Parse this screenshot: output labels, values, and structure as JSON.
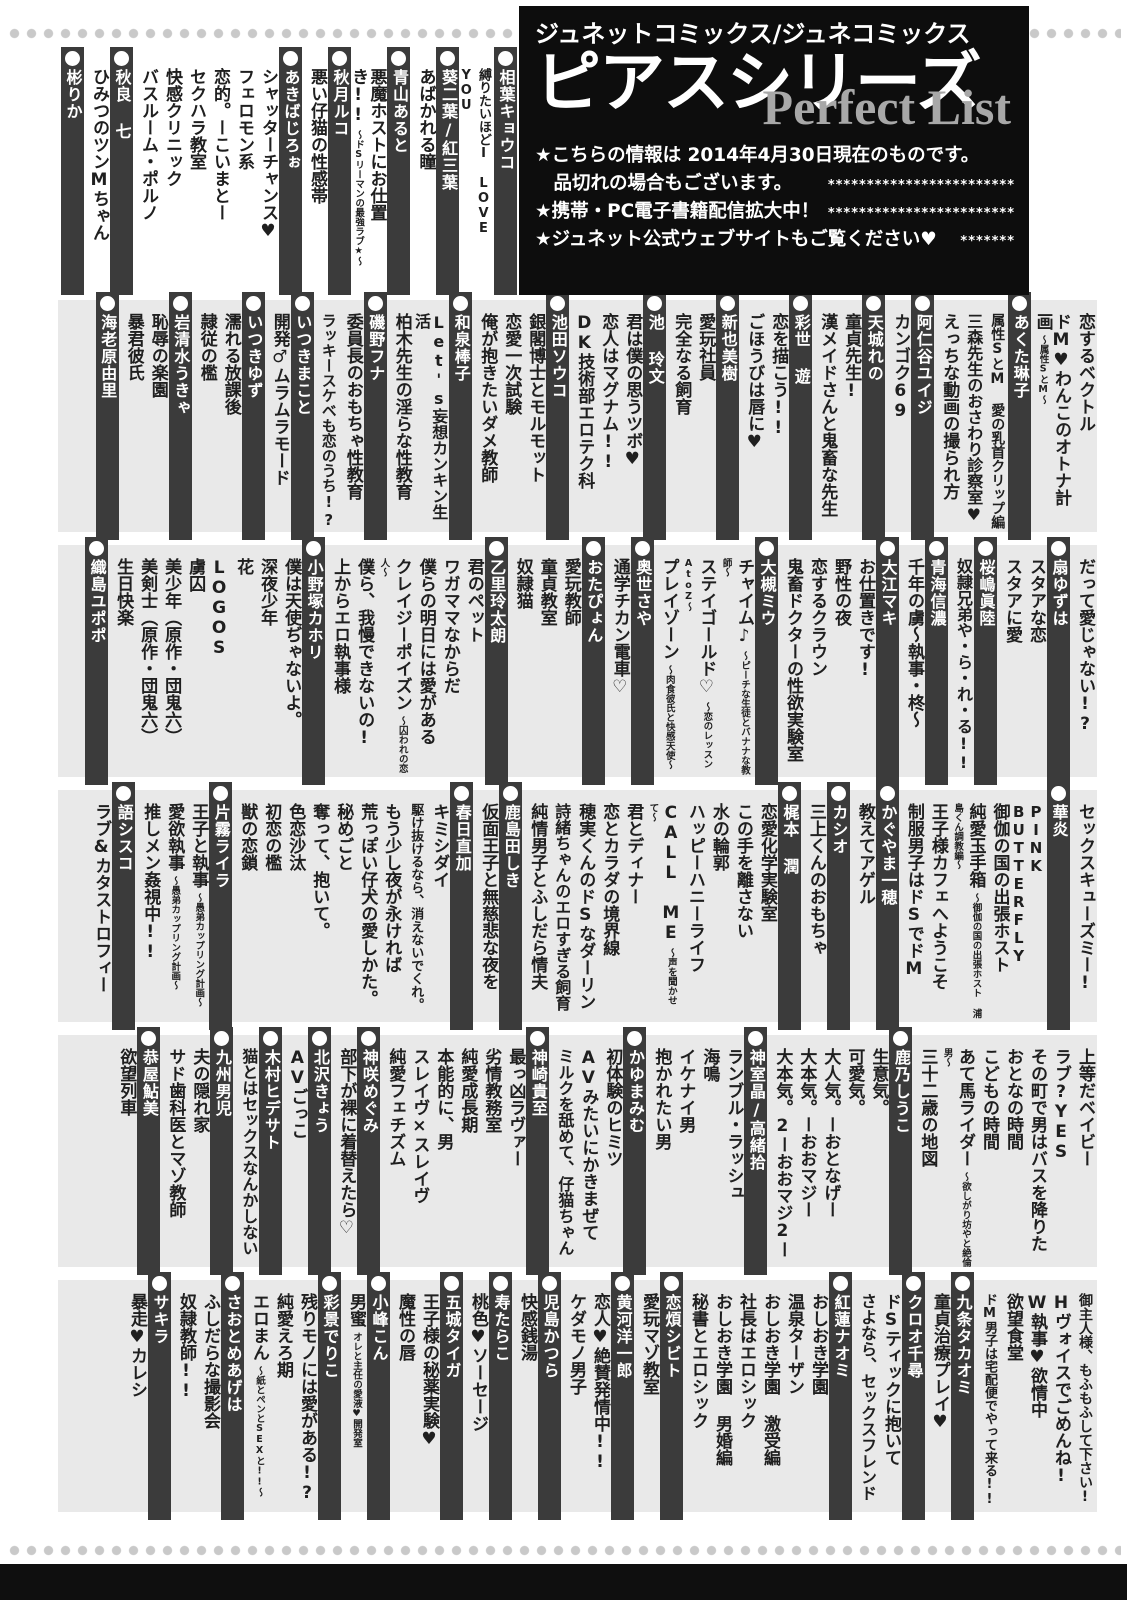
{
  "colors": {
    "header_bg": "#0d0d0d",
    "subtitle_gray": "#a8a8a8",
    "row_bg": "#e9e9e9",
    "row_bg_first": "#ffffff",
    "author_bar": "#3b3b3b",
    "title_text": "#1f1f1f",
    "dots": "#c9c9c9"
  },
  "header": {
    "series_line": "ジュネットコミックス/ジュネコミックス",
    "title": "ピアスシリーズ",
    "subtitle": "Perfect List",
    "notes": [
      {
        "text": "★こちらの情報は 2014年4月30日現在のものです。",
        "stars": ""
      },
      {
        "text": "　品切れの場合もございます。",
        "stars": "************************"
      },
      {
        "text": "★携帯・PC電子書籍配信拡大中！",
        "stars": "************************"
      },
      {
        "text": "★ジュネット公式ウェブサイトもご覧ください♥",
        "stars": "*******"
      }
    ]
  },
  "rows": [
    {
      "items": [
        {
          "kind": "author",
          "text": "相葉キョウコ"
        },
        {
          "kind": "title",
          "text": "縛りたいほどI LOVE YOU"
        },
        {
          "kind": "author",
          "text": "葵二葉/紅三葉"
        },
        {
          "kind": "title",
          "text": "あばかれる瞳"
        },
        {
          "kind": "author",
          "text": "青山あると"
        },
        {
          "kind": "title",
          "text": "悪魔ホストにお仕置き!!",
          "sub": "〜ドSリーマンの最強ラブ★〜"
        },
        {
          "kind": "author",
          "text": "秋月ルコ"
        },
        {
          "kind": "title",
          "text": "悪い仔猫の性感帯"
        },
        {
          "kind": "author",
          "text": "あきばじろぉ"
        },
        {
          "kind": "title",
          "text": "シャッターチャンス♥"
        },
        {
          "kind": "title",
          "text": "フェロモン系"
        },
        {
          "kind": "title",
          "text": "恋的。ーこいまとー"
        },
        {
          "kind": "title",
          "text": "セクハラ教室"
        },
        {
          "kind": "title",
          "text": "快感クリニック"
        },
        {
          "kind": "title",
          "text": "バスルーム・ポルノ"
        },
        {
          "kind": "author",
          "text": "秋良 七"
        },
        {
          "kind": "title",
          "text": "ひみつのツンMちゃん"
        },
        {
          "kind": "author",
          "text": "彬りか"
        }
      ]
    },
    {
      "items": [
        {
          "kind": "title",
          "text": "恋するベクトル"
        },
        {
          "kind": "title",
          "text": "ドM♥わんこのオトナ計画",
          "sub": "〜属性SとM〜"
        },
        {
          "kind": "author",
          "text": "あくた琳子"
        },
        {
          "kind": "title",
          "text": "属性SとM 愛の乳首クリップ編"
        },
        {
          "kind": "title",
          "text": "三森先生のおさわり診察室♥"
        },
        {
          "kind": "title",
          "text": "えっちな動画の撮られ方"
        },
        {
          "kind": "author",
          "text": "阿仁谷ユイジ"
        },
        {
          "kind": "title",
          "text": "カンゴク69"
        },
        {
          "kind": "author",
          "text": "天城れの"
        },
        {
          "kind": "title",
          "text": "童貞先生!"
        },
        {
          "kind": "title",
          "text": "漢メイドさんと鬼畜な先生"
        },
        {
          "kind": "author",
          "text": "彩世 遊"
        },
        {
          "kind": "title",
          "text": "恋を描こう!!"
        },
        {
          "kind": "title",
          "text": "ごほうびは唇に♥"
        },
        {
          "kind": "author",
          "text": "新也美樹"
        },
        {
          "kind": "title",
          "text": "愛玩社員"
        },
        {
          "kind": "title",
          "text": "完全なる飼育"
        },
        {
          "kind": "author",
          "text": "池 玲文"
        },
        {
          "kind": "title",
          "text": "君は僕の思うツボ♥"
        },
        {
          "kind": "title",
          "text": "恋人はマグナム!!"
        },
        {
          "kind": "title",
          "text": "DK技術部エロテク科"
        },
        {
          "kind": "author",
          "text": "池田ソウコ"
        },
        {
          "kind": "title",
          "text": "銀閣博士とモルモット"
        },
        {
          "kind": "title",
          "text": "恋愛一次試験"
        },
        {
          "kind": "title",
          "text": "俺が抱きたいダメ教師"
        },
        {
          "kind": "author",
          "text": "和泉棒子"
        },
        {
          "kind": "title",
          "text": "Let's妄想カンキン生活"
        },
        {
          "kind": "title",
          "text": "柏木先生の淫らな性教育"
        },
        {
          "kind": "author",
          "text": "磯野フナ"
        },
        {
          "kind": "title",
          "text": "委員長のおもちゃ性教育"
        },
        {
          "kind": "title",
          "text": "ラッキースケベも恋のうち!?"
        },
        {
          "kind": "author",
          "text": "いつきまこと"
        },
        {
          "kind": "title",
          "text": "開発♂ムラムラモード"
        },
        {
          "kind": "author",
          "text": "いつきゆず"
        },
        {
          "kind": "title",
          "text": "濡れる放課後"
        },
        {
          "kind": "title",
          "text": "隷従の檻"
        },
        {
          "kind": "author",
          "text": "岩清水うきゃ"
        },
        {
          "kind": "title",
          "text": "恥辱の楽園"
        },
        {
          "kind": "title",
          "text": "暴君彼氏"
        },
        {
          "kind": "author",
          "text": "海老原由里"
        }
      ]
    },
    {
      "items": [
        {
          "kind": "title",
          "text": "だって愛じゃない!?"
        },
        {
          "kind": "author",
          "text": "扇ゆずは"
        },
        {
          "kind": "title",
          "text": "スタアな恋"
        },
        {
          "kind": "title",
          "text": "スタアに愛"
        },
        {
          "kind": "author",
          "text": "桜嶋眞陸"
        },
        {
          "kind": "title",
          "text": "奴隷兄弟や・ら・れ・る!!"
        },
        {
          "kind": "author",
          "text": "青海信濃"
        },
        {
          "kind": "title",
          "text": "千年の虜〜執事・柊〜"
        },
        {
          "kind": "author",
          "text": "大江マキ"
        },
        {
          "kind": "title",
          "text": "お仕置きです!"
        },
        {
          "kind": "title",
          "text": "野性の夜"
        },
        {
          "kind": "title",
          "text": "恋するクラウン"
        },
        {
          "kind": "title",
          "text": "鬼畜ドクターの性欲実験室"
        },
        {
          "kind": "author",
          "text": "大槻ミウ"
        },
        {
          "kind": "title",
          "text": "チャイム♪",
          "sub": "〜ピーチな生徒とバナナな教師〜"
        },
        {
          "kind": "title",
          "text": "ステイゴールド♡",
          "sub": "〜恋のレッスンAtoZ〜"
        },
        {
          "kind": "title",
          "text": "プレイゾーン",
          "sub": "〜肉食彼氏と快感天使〜"
        },
        {
          "kind": "author",
          "text": "奥世さや"
        },
        {
          "kind": "title",
          "text": "通学チカン電車♡"
        },
        {
          "kind": "author",
          "text": "おたぴょん"
        },
        {
          "kind": "title",
          "text": "愛玩教師"
        },
        {
          "kind": "title",
          "text": "童貞教室"
        },
        {
          "kind": "title",
          "text": "奴隷猫"
        },
        {
          "kind": "author",
          "text": "乙里玲太朗"
        },
        {
          "kind": "title",
          "text": "君のペット"
        },
        {
          "kind": "title",
          "text": "ワガママなからだ"
        },
        {
          "kind": "title",
          "text": "僕らの明日には愛がある"
        },
        {
          "kind": "title",
          "text": "クレイジーポイズン",
          "sub": "〜囚われの恋人〜"
        },
        {
          "kind": "title",
          "text": "僕ら、我慢できないの!"
        },
        {
          "kind": "title",
          "text": "上からエロ執事様"
        },
        {
          "kind": "author",
          "text": "小野塚カホリ"
        },
        {
          "kind": "title",
          "text": "僕は天使ぢゃないよ。"
        },
        {
          "kind": "title",
          "text": "深夜少年"
        },
        {
          "kind": "title",
          "text": "花"
        },
        {
          "kind": "title",
          "text": "LOGOS"
        },
        {
          "kind": "title",
          "text": "虜囚"
        },
        {
          "kind": "title",
          "text": "美少年（原作・団鬼六）"
        },
        {
          "kind": "title",
          "text": "美剣士（原作・団鬼六）"
        },
        {
          "kind": "title",
          "text": "生日快楽"
        },
        {
          "kind": "author",
          "text": "織島ユポポ"
        }
      ]
    },
    {
      "items": [
        {
          "kind": "title",
          "text": "セックスキューズミー!"
        },
        {
          "kind": "author",
          "text": "華炎"
        },
        {
          "kind": "title",
          "text": "PINK BUTTERFLY"
        },
        {
          "kind": "title",
          "text": "御伽の国の出張ホスト"
        },
        {
          "kind": "title",
          "text": "純愛玉手箱",
          "sub": "〜御伽の国の出張ホスト 浦島くん調教編〜"
        },
        {
          "kind": "title",
          "text": "王子様カフェへようこそ"
        },
        {
          "kind": "title",
          "text": "制服男子はドSでドM"
        },
        {
          "kind": "author",
          "text": "かぐやま一穂"
        },
        {
          "kind": "title",
          "text": "教えてアゲル"
        },
        {
          "kind": "author",
          "text": "カシオ"
        },
        {
          "kind": "title",
          "text": "三上くんのおもちゃ"
        },
        {
          "kind": "author",
          "text": "梶本 潤"
        },
        {
          "kind": "title",
          "text": "恋愛化学実験室"
        },
        {
          "kind": "title",
          "text": "この手を離さない"
        },
        {
          "kind": "title",
          "text": "水の輪郭"
        },
        {
          "kind": "title",
          "text": "ハッピーハニーライフ"
        },
        {
          "kind": "title",
          "text": "CALL ME",
          "sub": "〜声を聞かせて〜"
        },
        {
          "kind": "title",
          "text": "君とディナー"
        },
        {
          "kind": "title",
          "text": "恋とカラダの境界線"
        },
        {
          "kind": "title",
          "text": "穂実くんのドSなダーリン"
        },
        {
          "kind": "title",
          "text": "詩緒ちゃんのエロすぎる飼育"
        },
        {
          "kind": "title",
          "text": "純情男子とふしだら情夫"
        },
        {
          "kind": "author",
          "text": "鹿島田しき"
        },
        {
          "kind": "title",
          "text": "仮面王子と無慈悲な夜を"
        },
        {
          "kind": "author",
          "text": "春日直加"
        },
        {
          "kind": "title",
          "text": "キミシダイ"
        },
        {
          "kind": "title",
          "text": "駆け抜けるなら、消えないでくれ。"
        },
        {
          "kind": "title",
          "text": "もう少し夜が永ければ"
        },
        {
          "kind": "title",
          "text": "荒っぽい仔犬の愛しかた。"
        },
        {
          "kind": "title",
          "text": "秘めごと"
        },
        {
          "kind": "title",
          "text": "奪って、抱いて。"
        },
        {
          "kind": "title",
          "text": "色恋沙汰"
        },
        {
          "kind": "title",
          "text": "初恋の檻"
        },
        {
          "kind": "title",
          "text": "獣の恋鎖"
        },
        {
          "kind": "author",
          "text": "片霧ライラ"
        },
        {
          "kind": "title",
          "text": "王子と執事",
          "sub": "〜愚弟カップリング計画〜"
        },
        {
          "kind": "title",
          "text": "愛欲執事",
          "sub": "〜愚弟カップリング計画〜"
        },
        {
          "kind": "title",
          "text": "推しメン姦視中!!"
        },
        {
          "kind": "author",
          "text": "語シスコ"
        },
        {
          "kind": "title",
          "text": "ラブ&カタストロフィー"
        }
      ]
    },
    {
      "items": [
        {
          "kind": "title",
          "text": "上等だベイビー"
        },
        {
          "kind": "title",
          "text": "ラブ?YES"
        },
        {
          "kind": "title",
          "text": "その町で男はバスを降りた"
        },
        {
          "kind": "title",
          "text": "おとなの時間"
        },
        {
          "kind": "title",
          "text": "こどもの時間"
        },
        {
          "kind": "title",
          "text": "あて馬ライダー",
          "sub": "〜欲しがり坊やと絶倫男〜"
        },
        {
          "kind": "title",
          "text": "三十二歳の地図"
        },
        {
          "kind": "author",
          "text": "鹿乃しうこ"
        },
        {
          "kind": "title",
          "text": "生意気。"
        },
        {
          "kind": "title",
          "text": "可愛気。"
        },
        {
          "kind": "title",
          "text": "大人気。ーおとなげー"
        },
        {
          "kind": "title",
          "text": "大本気。ーおおマジー"
        },
        {
          "kind": "title",
          "text": "大本気。2ーおおマジ2ー"
        },
        {
          "kind": "author",
          "text": "神室晶/高緒拾"
        },
        {
          "kind": "title",
          "text": "ランブル・ラッシュ"
        },
        {
          "kind": "title",
          "text": "海鳴"
        },
        {
          "kind": "title",
          "text": "イケナイ男"
        },
        {
          "kind": "title",
          "text": "抱かれたい男"
        },
        {
          "kind": "author",
          "text": "かゆまみむ"
        },
        {
          "kind": "title",
          "text": "初体験のヒミツ"
        },
        {
          "kind": "title",
          "text": "AVみたいにかきまぜて"
        },
        {
          "kind": "title",
          "text": "ミルクを舐めて、仔猫ちゃん"
        },
        {
          "kind": "author",
          "text": "神崎貴至"
        },
        {
          "kind": "title",
          "text": "最っ凶ラヴァー"
        },
        {
          "kind": "title",
          "text": "劣情教務室"
        },
        {
          "kind": "title",
          "text": "純愛成長期"
        },
        {
          "kind": "title",
          "text": "本能的に、男"
        },
        {
          "kind": "title",
          "text": "スレイヴ×スレイヴ"
        },
        {
          "kind": "title",
          "text": "純愛フェチズム"
        },
        {
          "kind": "author",
          "text": "神咲めぐみ"
        },
        {
          "kind": "title",
          "text": "部下が裸に着替えたら♡"
        },
        {
          "kind": "author",
          "text": "北沢きょう"
        },
        {
          "kind": "title",
          "text": "AVごっこ"
        },
        {
          "kind": "author",
          "text": "木村ヒデサト"
        },
        {
          "kind": "title",
          "text": "猫とはセックスなんかしない"
        },
        {
          "kind": "author",
          "text": "九州男児"
        },
        {
          "kind": "title",
          "text": "夫の隠れ家"
        },
        {
          "kind": "title",
          "text": "サド歯科医とマゾ教師"
        },
        {
          "kind": "author",
          "text": "恭屋鮎美"
        },
        {
          "kind": "title",
          "text": "欲望列車"
        }
      ]
    },
    {
      "items": [
        {
          "kind": "title",
          "text": "御主人様、もふもふして下さい!"
        },
        {
          "kind": "title",
          "text": "Hヴォイスでごめんね!"
        },
        {
          "kind": "title",
          "text": "W執事♥欲情中"
        },
        {
          "kind": "title",
          "text": "欲望食堂"
        },
        {
          "kind": "title",
          "text": "ドM男子は宅配便でやって来る!!"
        },
        {
          "kind": "author",
          "text": "九条タカオミ"
        },
        {
          "kind": "title",
          "text": "童貞治療プレイ♥"
        },
        {
          "kind": "author",
          "text": "クロオ千尋"
        },
        {
          "kind": "title",
          "text": "ドSティックに抱いて"
        },
        {
          "kind": "title",
          "text": "さよなら、セックスフレンド"
        },
        {
          "kind": "author",
          "text": "紅蓮ナオミ"
        },
        {
          "kind": "title",
          "text": "おしおき学園"
        },
        {
          "kind": "title",
          "text": "温泉ターザン"
        },
        {
          "kind": "title",
          "text": "おしおき学園 激受編"
        },
        {
          "kind": "title",
          "text": "社長はエロシック"
        },
        {
          "kind": "title",
          "text": "おしおき学園 男婚編"
        },
        {
          "kind": "title",
          "text": "秘書とエロシック"
        },
        {
          "kind": "author",
          "text": "恋煩シビト"
        },
        {
          "kind": "title",
          "text": "愛玩マゾ教室"
        },
        {
          "kind": "author",
          "text": "黄河洋一郎"
        },
        {
          "kind": "title",
          "text": "恋人♥絶賛発情中!!"
        },
        {
          "kind": "title",
          "text": "ケダモノ男子"
        },
        {
          "kind": "author",
          "text": "児島かつら"
        },
        {
          "kind": "title",
          "text": "快感銭湯"
        },
        {
          "kind": "author",
          "text": "寿たらこ"
        },
        {
          "kind": "title",
          "text": "桃色♥ソーセージ"
        },
        {
          "kind": "author",
          "text": "五城タイガ"
        },
        {
          "kind": "title",
          "text": "王子様の秘薬実験♥"
        },
        {
          "kind": "title",
          "text": "魔性の唇"
        },
        {
          "kind": "author",
          "text": "小峰こん"
        },
        {
          "kind": "title",
          "text": "男蜜",
          "sub": "オレと主任の愛液♥開発室"
        },
        {
          "kind": "author",
          "text": "彩景でりこ"
        },
        {
          "kind": "title",
          "text": "残りモノには愛がある!?"
        },
        {
          "kind": "title",
          "text": "純愛えろ期"
        },
        {
          "kind": "title",
          "text": "エロまん",
          "sub": "〜紙とペンとSEXと!!〜"
        },
        {
          "kind": "author",
          "text": "さおとめあげは"
        },
        {
          "kind": "title",
          "text": "ふしだらな撮影会"
        },
        {
          "kind": "title",
          "text": "奴隷教師!!"
        },
        {
          "kind": "author",
          "text": "サキラ"
        },
        {
          "kind": "title",
          "text": "暴走♥カレシ"
        }
      ]
    }
  ]
}
